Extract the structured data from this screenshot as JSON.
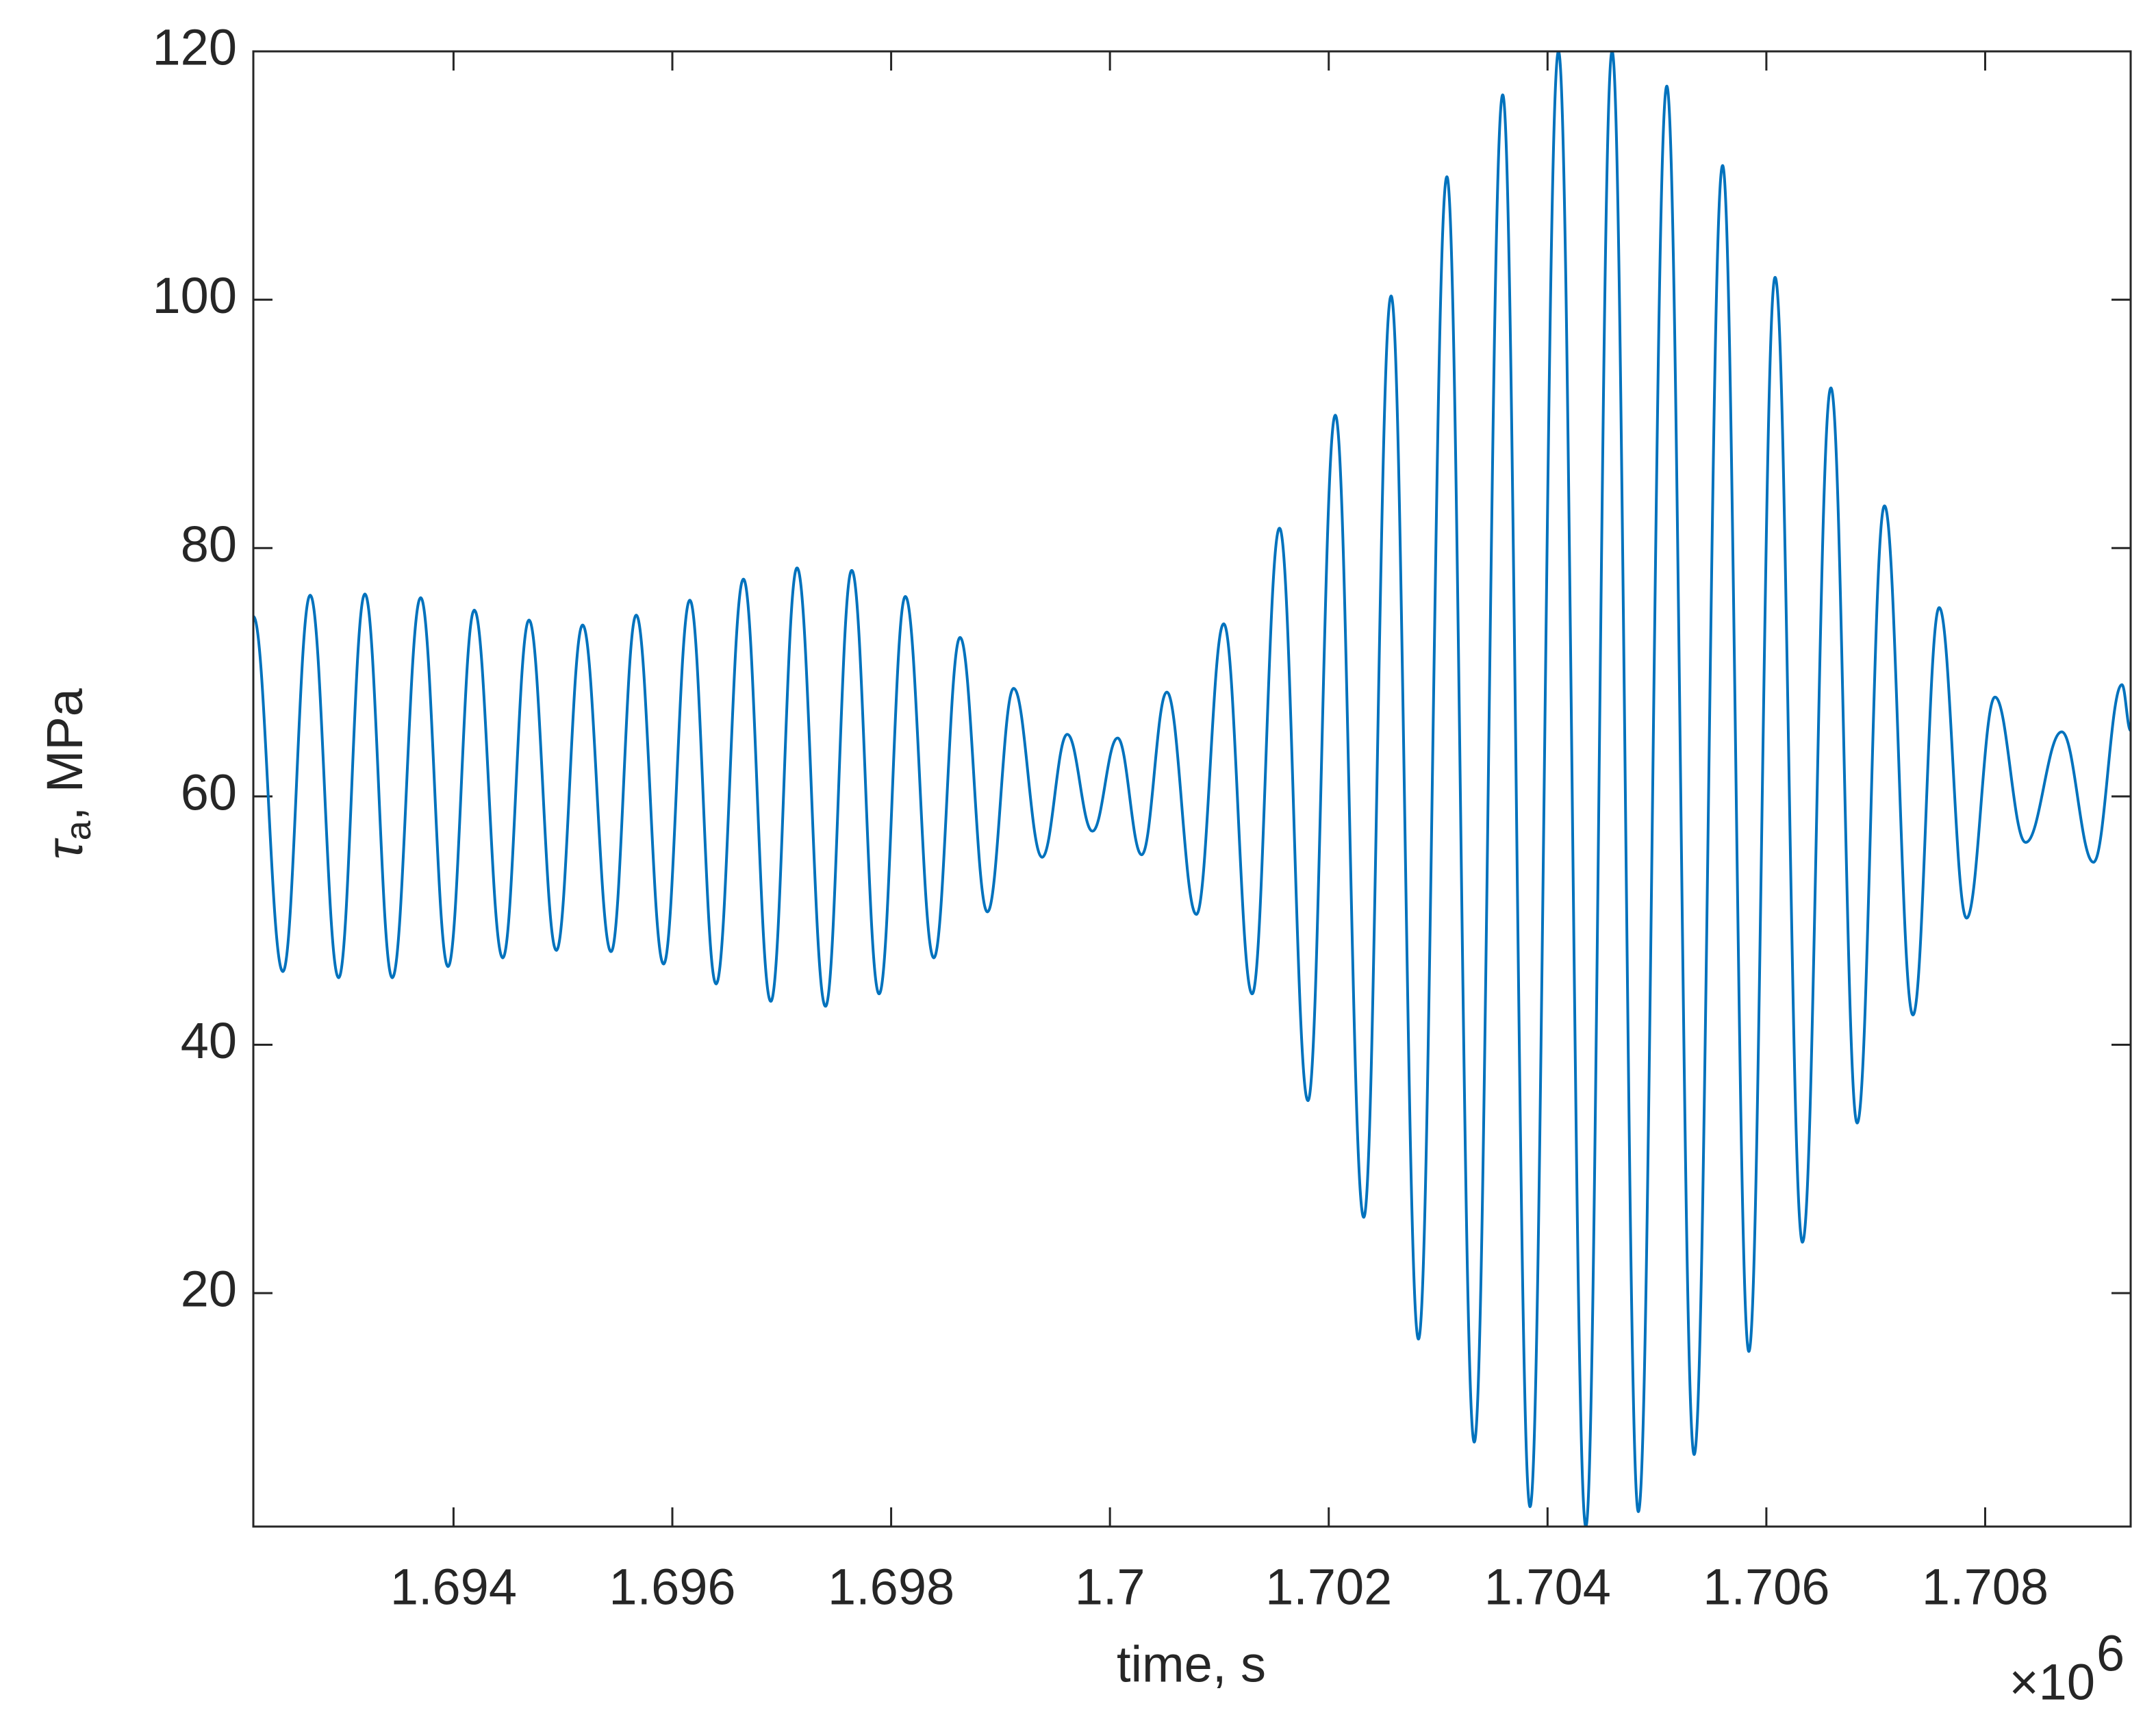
{
  "chart_data": {
    "type": "line",
    "xlabel": "time, s",
    "ylabel": {
      "symbol": "τ",
      "subscript": "a",
      "text": ", MPa"
    },
    "x_multiplier": {
      "base": "×10",
      "exponent": "6"
    },
    "color": "#0072bd",
    "xlim": [
      1692170,
      1709330
    ],
    "ylim": [
      1.2,
      120
    ],
    "xticks": [
      {
        "value": 1694000,
        "label": "1.694"
      },
      {
        "value": 1696000,
        "label": "1.696"
      },
      {
        "value": 1698000,
        "label": "1.698"
      },
      {
        "value": 1700000,
        "label": "1.7"
      },
      {
        "value": 1702000,
        "label": "1.702"
      },
      {
        "value": 1704000,
        "label": "1.704"
      },
      {
        "value": 1706000,
        "label": "1.706"
      },
      {
        "value": 1708000,
        "label": "1.708"
      }
    ],
    "yticks": [
      20,
      40,
      60,
      80,
      100,
      120
    ],
    "x": [
      1692170,
      1692440,
      1692690,
      1692950,
      1693190,
      1693440,
      1693700,
      1693950,
      1694190,
      1694450,
      1694690,
      1694940,
      1695180,
      1695440,
      1695670,
      1695920,
      1696160,
      1696400,
      1696650,
      1696900,
      1697140,
      1697400,
      1697640,
      1697890,
      1698130,
      1698390,
      1698630,
      1698880,
      1699120,
      1699380,
      1699610,
      1699840,
      1700070,
      1700290,
      1700520,
      1700790,
      1701040,
      1701300,
      1701550,
      1701810,
      1702060,
      1702320,
      1702570,
      1702820,
      1703080,
      1703330,
      1703590,
      1703840,
      1704100,
      1704350,
      1704590,
      1704830,
      1705090,
      1705340,
      1705600,
      1705840,
      1706080,
      1706330,
      1706590,
      1706830,
      1707080,
      1707340,
      1707580,
      1707830,
      1708090,
      1708370,
      1708700,
      1708990,
      1709250,
      1709330
    ],
    "values": [
      74.5,
      45.9,
      76.2,
      45.4,
      76.3,
      45.4,
      76,
      46.3,
      75,
      47,
      74.2,
      47.6,
      73.8,
      47.5,
      74.6,
      46.5,
      75.8,
      44.9,
      77.5,
      43.5,
      78.4,
      43.1,
      78.2,
      44.1,
      76.1,
      47,
      72.8,
      50.7,
      68.7,
      55.1,
      65,
      57.2,
      64.7,
      55.3,
      68.4,
      50.5,
      73.9,
      44.1,
      81.6,
      35.5,
      90.7,
      26.1,
      100.3,
      16.3,
      109.9,
      8,
      116.5,
      2.8,
      120,
      1.2,
      120,
      2.4,
      117.2,
      7,
      110.8,
      15.3,
      101.8,
      24.1,
      92.9,
      33.7,
      83.4,
      42.4,
      75.2,
      50.2,
      68,
      56.3,
      65.2,
      54.7,
      69,
      65.3
    ]
  }
}
